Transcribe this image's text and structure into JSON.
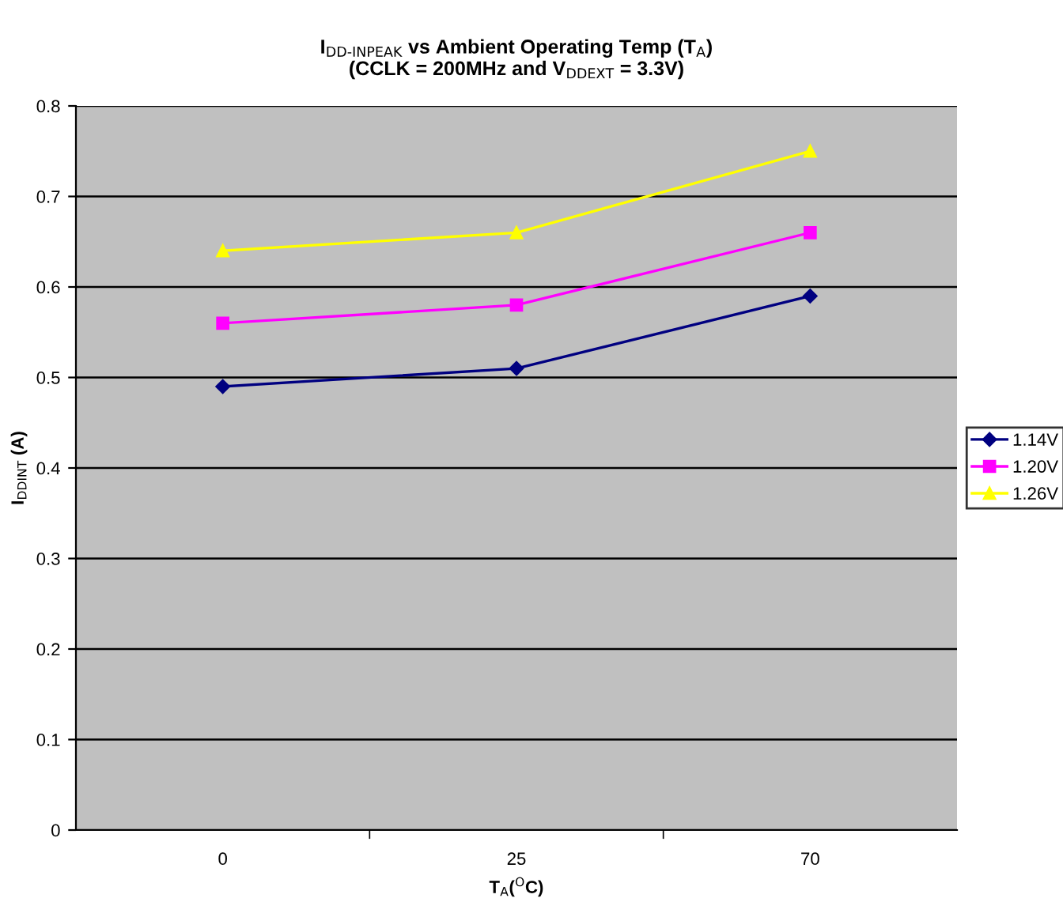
{
  "chart_data": {
    "type": "line",
    "title": "I$_{DD-INPEAK}$ vs Ambient Operating Temp (T$_{A}$)\n(CCLK = 200MHz and V$_{DDEXT}$ = 3.3V)",
    "xlabel": "T$_{A}$($^{O}$C)",
    "ylabel": "I$_{DDINT}$ (A)",
    "categories": [
      "0",
      "25",
      "70"
    ],
    "series": [
      {
        "name": "1.14V",
        "color": "#000080",
        "marker": "diamond",
        "values": [
          0.49,
          0.51,
          0.59
        ]
      },
      {
        "name": "1.20V",
        "color": "#ff00ff",
        "marker": "square",
        "values": [
          0.56,
          0.58,
          0.66
        ]
      },
      {
        "name": "1.26V",
        "color": "#ffff00",
        "marker": "triangle",
        "values": [
          0.64,
          0.66,
          0.75
        ]
      }
    ],
    "ylim": [
      0,
      0.8
    ],
    "yticks": [
      0,
      0.1,
      0.2,
      0.3,
      0.4,
      0.5,
      0.6,
      0.7,
      0.8
    ],
    "grid": "y",
    "legend": "right",
    "line_style": "solid"
  }
}
